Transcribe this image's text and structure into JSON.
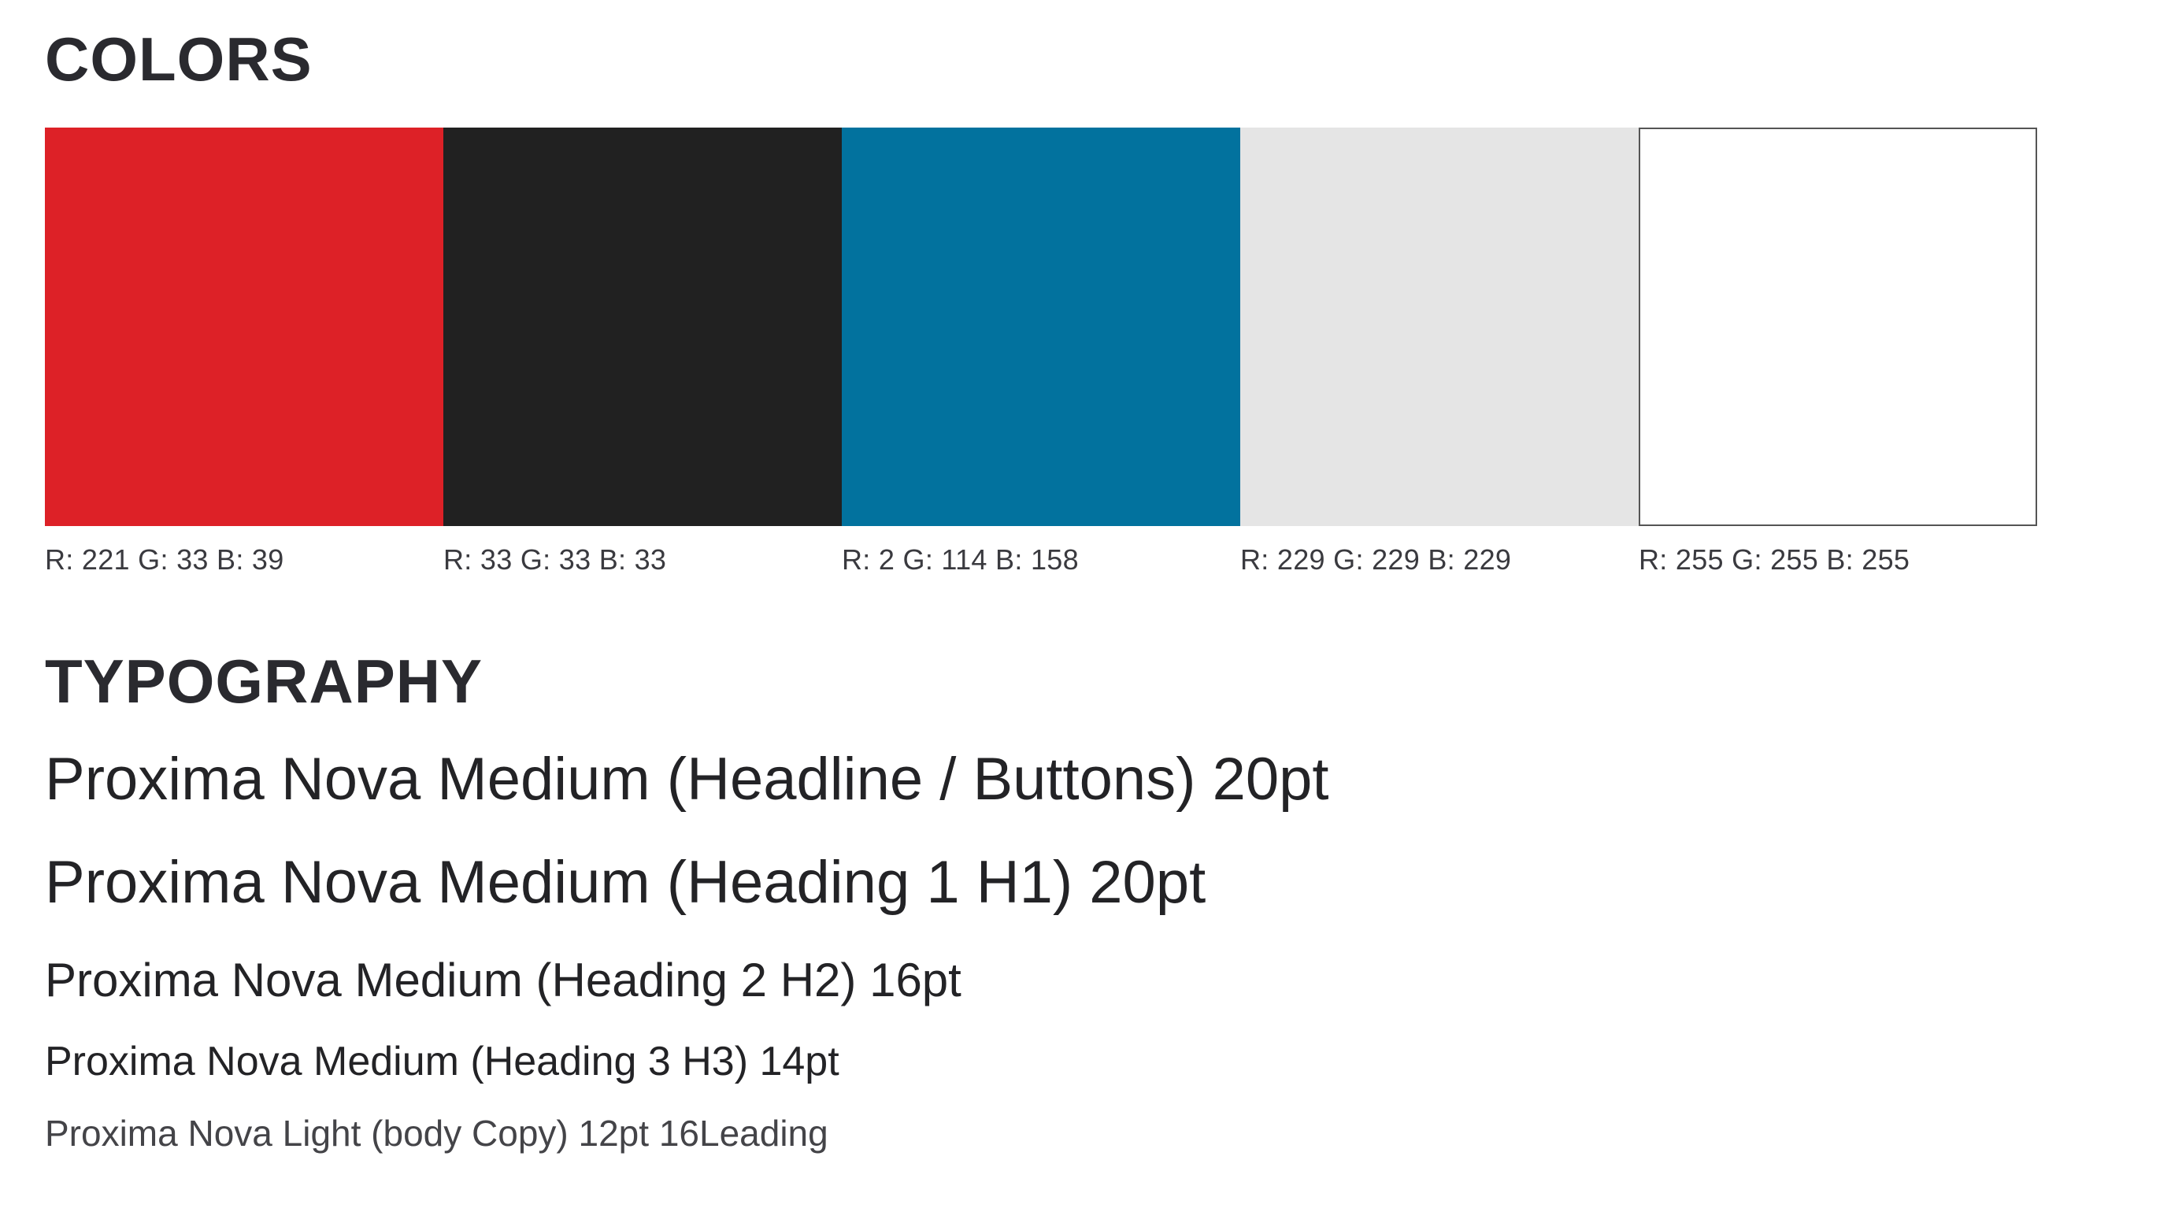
{
  "colors_section": {
    "title": "COLORS",
    "swatches": [
      {
        "color": "#DD2127",
        "label": "R: 221 G: 33 B: 39"
      },
      {
        "color": "#212121",
        "label": "R: 33 G: 33 B: 33"
      },
      {
        "color": "#02729E",
        "label": "R: 2 G: 114 B: 158"
      },
      {
        "color": "#E5E5E5",
        "label": "R: 229 G: 229 B: 229"
      },
      {
        "color": "#FFFFFF",
        "label": "R: 255 G: 255 B: 255"
      }
    ]
  },
  "typography_section": {
    "title": "TYPOGRAPHY",
    "samples": [
      "Proxima Nova Medium (Headline / Buttons) 20pt",
      "Proxima Nova Medium (Heading 1 H1) 20pt",
      "Proxima Nova Medium (Heading 2 H2) 16pt",
      "Proxima Nova Medium (Heading 3 H3) 14pt",
      "Proxima Nova Light (body Copy) 12pt 16Leading"
    ]
  }
}
